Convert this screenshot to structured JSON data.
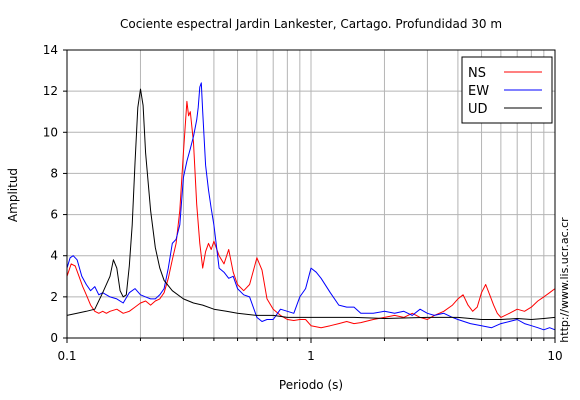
{
  "chart_data": {
    "type": "line",
    "title": "Cociente espectral Jardin Lankester, Cartago. Profundidad 30 m",
    "xlabel": "Periodo (s)",
    "ylabel": "Amplitud",
    "xscale": "log",
    "xlim": [
      0.1,
      10
    ],
    "ylim": [
      0,
      14
    ],
    "x_tick_labels": [
      "0.1",
      "1",
      "10"
    ],
    "y_ticks": [
      0,
      2,
      4,
      6,
      8,
      10,
      12,
      14
    ],
    "grid": true,
    "legend_placement": "top-right",
    "watermark": "http://www.lis.ucr.ac.cr",
    "series": [
      {
        "name": "NS",
        "color": "#ff0000",
        "points": [
          [
            0.1,
            3.0
          ],
          [
            0.104,
            3.6
          ],
          [
            0.108,
            3.5
          ],
          [
            0.112,
            3.0
          ],
          [
            0.116,
            2.5
          ],
          [
            0.12,
            2.1
          ],
          [
            0.125,
            1.6
          ],
          [
            0.13,
            1.3
          ],
          [
            0.135,
            1.2
          ],
          [
            0.14,
            1.3
          ],
          [
            0.145,
            1.2
          ],
          [
            0.15,
            1.3
          ],
          [
            0.16,
            1.4
          ],
          [
            0.17,
            1.2
          ],
          [
            0.18,
            1.3
          ],
          [
            0.19,
            1.5
          ],
          [
            0.2,
            1.7
          ],
          [
            0.21,
            1.8
          ],
          [
            0.22,
            1.6
          ],
          [
            0.23,
            1.8
          ],
          [
            0.24,
            1.9
          ],
          [
            0.25,
            2.2
          ],
          [
            0.26,
            2.9
          ],
          [
            0.27,
            3.8
          ],
          [
            0.28,
            4.6
          ],
          [
            0.29,
            6.2
          ],
          [
            0.3,
            9.0
          ],
          [
            0.31,
            11.5
          ],
          [
            0.315,
            10.8
          ],
          [
            0.32,
            11.0
          ],
          [
            0.33,
            9.5
          ],
          [
            0.34,
            6.5
          ],
          [
            0.35,
            4.6
          ],
          [
            0.36,
            3.4
          ],
          [
            0.37,
            4.2
          ],
          [
            0.38,
            4.6
          ],
          [
            0.39,
            4.3
          ],
          [
            0.4,
            4.7
          ],
          [
            0.42,
            4.0
          ],
          [
            0.44,
            3.6
          ],
          [
            0.46,
            4.3
          ],
          [
            0.48,
            3.2
          ],
          [
            0.5,
            2.6
          ],
          [
            0.53,
            2.3
          ],
          [
            0.56,
            2.6
          ],
          [
            0.6,
            3.9
          ],
          [
            0.63,
            3.3
          ],
          [
            0.66,
            1.9
          ],
          [
            0.7,
            1.4
          ],
          [
            0.75,
            1.1
          ],
          [
            0.8,
            0.9
          ],
          [
            0.85,
            0.85
          ],
          [
            0.9,
            0.9
          ],
          [
            0.95,
            0.9
          ],
          [
            1.0,
            0.6
          ],
          [
            1.1,
            0.5
          ],
          [
            1.2,
            0.6
          ],
          [
            1.3,
            0.7
          ],
          [
            1.4,
            0.8
          ],
          [
            1.5,
            0.7
          ],
          [
            1.6,
            0.75
          ],
          [
            1.8,
            0.9
          ],
          [
            2.0,
            1.0
          ],
          [
            2.2,
            1.1
          ],
          [
            2.4,
            1.0
          ],
          [
            2.6,
            1.2
          ],
          [
            2.8,
            1.0
          ],
          [
            3.0,
            0.9
          ],
          [
            3.2,
            1.1
          ],
          [
            3.5,
            1.3
          ],
          [
            3.8,
            1.6
          ],
          [
            4.0,
            1.9
          ],
          [
            4.2,
            2.1
          ],
          [
            4.4,
            1.6
          ],
          [
            4.6,
            1.3
          ],
          [
            4.8,
            1.5
          ],
          [
            5.0,
            2.2
          ],
          [
            5.2,
            2.6
          ],
          [
            5.4,
            2.1
          ],
          [
            5.6,
            1.6
          ],
          [
            5.8,
            1.2
          ],
          [
            6.0,
            1.0
          ],
          [
            6.5,
            1.2
          ],
          [
            7.0,
            1.4
          ],
          [
            7.5,
            1.3
          ],
          [
            8.0,
            1.5
          ],
          [
            8.5,
            1.8
          ],
          [
            9.0,
            2.0
          ],
          [
            9.5,
            2.2
          ],
          [
            10.0,
            2.4
          ]
        ]
      },
      {
        "name": "EW",
        "color": "#0000ff",
        "points": [
          [
            0.1,
            3.4
          ],
          [
            0.103,
            3.9
          ],
          [
            0.106,
            4.0
          ],
          [
            0.11,
            3.8
          ],
          [
            0.115,
            3.0
          ],
          [
            0.12,
            2.6
          ],
          [
            0.125,
            2.3
          ],
          [
            0.13,
            2.5
          ],
          [
            0.135,
            2.1
          ],
          [
            0.14,
            2.2
          ],
          [
            0.15,
            2.0
          ],
          [
            0.16,
            1.9
          ],
          [
            0.17,
            1.7
          ],
          [
            0.18,
            2.2
          ],
          [
            0.19,
            2.4
          ],
          [
            0.2,
            2.1
          ],
          [
            0.21,
            2.0
          ],
          [
            0.22,
            1.9
          ],
          [
            0.23,
            1.9
          ],
          [
            0.24,
            2.1
          ],
          [
            0.25,
            2.4
          ],
          [
            0.26,
            3.4
          ],
          [
            0.27,
            4.6
          ],
          [
            0.28,
            4.8
          ],
          [
            0.29,
            5.5
          ],
          [
            0.3,
            7.8
          ],
          [
            0.31,
            8.6
          ],
          [
            0.32,
            9.2
          ],
          [
            0.33,
            9.8
          ],
          [
            0.34,
            10.6
          ],
          [
            0.345,
            11.2
          ],
          [
            0.35,
            12.2
          ],
          [
            0.355,
            12.4
          ],
          [
            0.36,
            11.0
          ],
          [
            0.37,
            8.4
          ],
          [
            0.38,
            7.2
          ],
          [
            0.39,
            6.3
          ],
          [
            0.4,
            5.5
          ],
          [
            0.42,
            3.4
          ],
          [
            0.44,
            3.2
          ],
          [
            0.46,
            2.9
          ],
          [
            0.48,
            3.0
          ],
          [
            0.5,
            2.4
          ],
          [
            0.53,
            2.1
          ],
          [
            0.56,
            2.0
          ],
          [
            0.6,
            1.0
          ],
          [
            0.63,
            0.8
          ],
          [
            0.66,
            0.9
          ],
          [
            0.7,
            0.9
          ],
          [
            0.75,
            1.4
          ],
          [
            0.8,
            1.3
          ],
          [
            0.85,
            1.2
          ],
          [
            0.9,
            2.0
          ],
          [
            0.95,
            2.4
          ],
          [
            1.0,
            3.4
          ],
          [
            1.05,
            3.2
          ],
          [
            1.1,
            2.9
          ],
          [
            1.2,
            2.2
          ],
          [
            1.3,
            1.6
          ],
          [
            1.4,
            1.5
          ],
          [
            1.5,
            1.5
          ],
          [
            1.6,
            1.2
          ],
          [
            1.8,
            1.2
          ],
          [
            2.0,
            1.3
          ],
          [
            2.2,
            1.2
          ],
          [
            2.4,
            1.3
          ],
          [
            2.6,
            1.1
          ],
          [
            2.8,
            1.4
          ],
          [
            3.0,
            1.2
          ],
          [
            3.2,
            1.1
          ],
          [
            3.5,
            1.2
          ],
          [
            3.8,
            1.0
          ],
          [
            4.0,
            0.9
          ],
          [
            4.5,
            0.7
          ],
          [
            5.0,
            0.6
          ],
          [
            5.5,
            0.5
          ],
          [
            6.0,
            0.7
          ],
          [
            6.5,
            0.8
          ],
          [
            7.0,
            0.9
          ],
          [
            7.5,
            0.7
          ],
          [
            8.0,
            0.6
          ],
          [
            8.5,
            0.5
          ],
          [
            9.0,
            0.4
          ],
          [
            9.5,
            0.5
          ],
          [
            10.0,
            0.4
          ]
        ]
      },
      {
        "name": "UD",
        "color": "#000000",
        "points": [
          [
            0.1,
            1.1
          ],
          [
            0.11,
            1.2
          ],
          [
            0.12,
            1.3
          ],
          [
            0.13,
            1.4
          ],
          [
            0.14,
            2.2
          ],
          [
            0.15,
            3.0
          ],
          [
            0.155,
            3.8
          ],
          [
            0.16,
            3.4
          ],
          [
            0.165,
            2.3
          ],
          [
            0.17,
            2.0
          ],
          [
            0.175,
            2.1
          ],
          [
            0.18,
            3.5
          ],
          [
            0.185,
            5.5
          ],
          [
            0.19,
            8.5
          ],
          [
            0.195,
            11.2
          ],
          [
            0.2,
            12.1
          ],
          [
            0.205,
            11.3
          ],
          [
            0.21,
            9.0
          ],
          [
            0.22,
            6.2
          ],
          [
            0.23,
            4.4
          ],
          [
            0.24,
            3.4
          ],
          [
            0.25,
            2.8
          ],
          [
            0.27,
            2.3
          ],
          [
            0.3,
            1.9
          ],
          [
            0.33,
            1.7
          ],
          [
            0.36,
            1.6
          ],
          [
            0.4,
            1.4
          ],
          [
            0.45,
            1.3
          ],
          [
            0.5,
            1.2
          ],
          [
            0.6,
            1.1
          ],
          [
            0.7,
            1.1
          ],
          [
            0.8,
            1.0
          ],
          [
            1.0,
            1.0
          ],
          [
            1.5,
            1.0
          ],
          [
            2.0,
            0.95
          ],
          [
            3.0,
            1.0
          ],
          [
            4.0,
            1.0
          ],
          [
            5.0,
            0.9
          ],
          [
            6.0,
            0.9
          ],
          [
            7.0,
            0.95
          ],
          [
            8.0,
            0.9
          ],
          [
            9.0,
            0.95
          ],
          [
            10.0,
            1.0
          ]
        ]
      }
    ]
  }
}
